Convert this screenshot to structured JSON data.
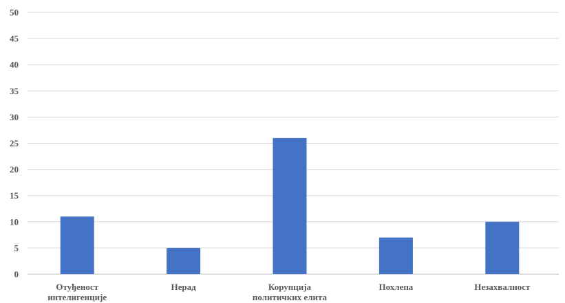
{
  "chart_data": {
    "type": "bar",
    "title": "",
    "xlabel": "",
    "ylabel": "",
    "categories": [
      [
        "Отуђеност",
        "интелигенције"
      ],
      [
        "Нерад"
      ],
      [
        "Корупција",
        "политичких елита"
      ],
      [
        "Похлепа"
      ],
      [
        "Незахвалност"
      ]
    ],
    "values": [
      11,
      5,
      26,
      7,
      10
    ],
    "ylim": [
      0,
      50
    ],
    "yticks": [
      0,
      5,
      10,
      15,
      20,
      25,
      30,
      35,
      40,
      45,
      50
    ],
    "grid": true,
    "legend": "none",
    "bar_color": "#4472c4"
  }
}
